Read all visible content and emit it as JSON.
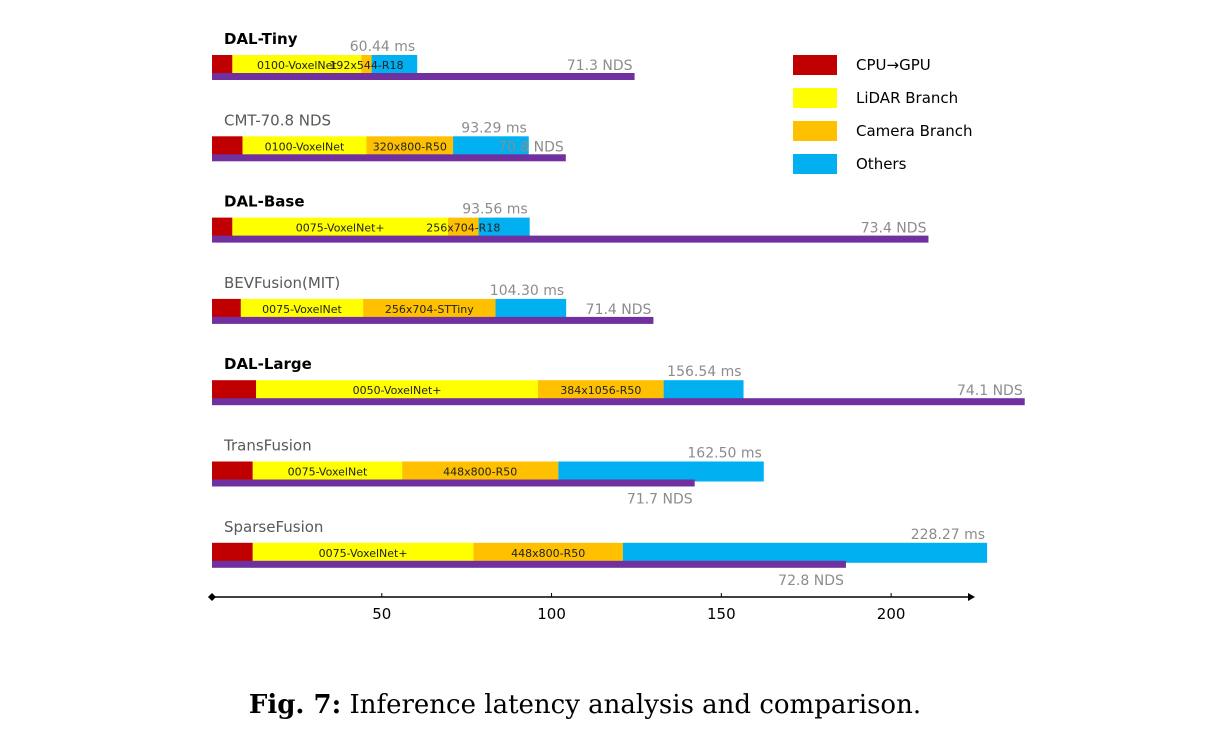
{
  "chart_data": {
    "type": "bar",
    "orientation": "horizontal",
    "stacked": true,
    "xlim": [
      0,
      225
    ],
    "xticks": [
      50,
      100,
      150,
      200
    ],
    "legend": {
      "placement": "top-right",
      "entries": [
        {
          "name": "CPU→GPU",
          "color": "#c00000"
        },
        {
          "name": "LiDAR Branch",
          "color": "#ffff00"
        },
        {
          "name": "Camera Branch",
          "color": "#ffc000"
        },
        {
          "name": "Others",
          "color": "#00b0f0"
        }
      ]
    },
    "nds_color": "#7030a0",
    "models": [
      {
        "name": "DAL-Tiny",
        "bold": true,
        "total_ms": 60.44,
        "total_label": "60.44 ms",
        "nds": 71.3,
        "nds_label": "71.3 NDS",
        "segments": [
          {
            "component": "CPU→GPU",
            "value": 6,
            "label": ""
          },
          {
            "component": "LiDAR Branch",
            "value": 38,
            "label": "0100-VoxelNet"
          },
          {
            "component": "Camera Branch",
            "value": 3,
            "label": "192x544-R18"
          },
          {
            "component": "Others",
            "value": 13.44,
            "label": ""
          }
        ]
      },
      {
        "name": "CMT-70.8 NDS",
        "bold": false,
        "total_ms": 93.29,
        "total_label": "93.29 ms",
        "nds": 70.8,
        "nds_label": "70.8 NDS",
        "segments": [
          {
            "component": "CPU→GPU",
            "value": 9,
            "label": ""
          },
          {
            "component": "LiDAR Branch",
            "value": 36.5,
            "label": "0100-VoxelNet"
          },
          {
            "component": "Camera Branch",
            "value": 25.5,
            "label": "320x800-R50"
          },
          {
            "component": "Others",
            "value": 22.29,
            "label": ""
          }
        ]
      },
      {
        "name": "DAL-Base",
        "bold": true,
        "total_ms": 93.56,
        "total_label": "93.56 ms",
        "nds": 73.4,
        "nds_label": "73.4 NDS",
        "segments": [
          {
            "component": "CPU→GPU",
            "value": 6,
            "label": ""
          },
          {
            "component": "LiDAR Branch",
            "value": 63.5,
            "label": "0075-VoxelNet+"
          },
          {
            "component": "Camera Branch",
            "value": 9,
            "label": "256x704-R18"
          },
          {
            "component": "Others",
            "value": 15.06,
            "label": ""
          }
        ]
      },
      {
        "name": "BEVFusion(MIT)",
        "bold": false,
        "total_ms": 104.3,
        "total_label": "104.30 ms",
        "nds": 71.4,
        "nds_label": "71.4 NDS",
        "segments": [
          {
            "component": "CPU→GPU",
            "value": 8.5,
            "label": ""
          },
          {
            "component": "LiDAR Branch",
            "value": 36,
            "label": "0075-VoxelNet"
          },
          {
            "component": "Camera Branch",
            "value": 39,
            "label": "256x704-STTiny"
          },
          {
            "component": "Others",
            "value": 20.8,
            "label": ""
          }
        ]
      },
      {
        "name": "DAL-Large",
        "bold": true,
        "total_ms": 156.54,
        "total_label": "156.54 ms",
        "nds": 74.1,
        "nds_label": "74.1 NDS",
        "segments": [
          {
            "component": "CPU→GPU",
            "value": 13,
            "label": ""
          },
          {
            "component": "LiDAR Branch",
            "value": 83,
            "label": "0050-VoxelNet+"
          },
          {
            "component": "Camera Branch",
            "value": 37,
            "label": "384x1056-R50"
          },
          {
            "component": "Others",
            "value": 23.54,
            "label": ""
          }
        ]
      },
      {
        "name": "TransFusion",
        "bold": false,
        "total_ms": 162.5,
        "total_label": "162.50 ms",
        "nds": 71.7,
        "nds_label": "71.7 NDS",
        "segments": [
          {
            "component": "CPU→GPU",
            "value": 12,
            "label": ""
          },
          {
            "component": "LiDAR Branch",
            "value": 44,
            "label": "0075-VoxelNet"
          },
          {
            "component": "Camera Branch",
            "value": 46,
            "label": "448x800-R50"
          },
          {
            "component": "Others",
            "value": 60.5,
            "label": ""
          }
        ]
      },
      {
        "name": "SparseFusion",
        "bold": false,
        "total_ms": 228.27,
        "total_label": "228.27 ms",
        "nds": 72.8,
        "nds_label": "72.8 NDS",
        "segments": [
          {
            "component": "CPU→GPU",
            "value": 12,
            "label": ""
          },
          {
            "component": "LiDAR Branch",
            "value": 65,
            "label": "0075-VoxelNet+"
          },
          {
            "component": "Camera Branch",
            "value": 44,
            "label": "448x800-R50"
          },
          {
            "component": "Others",
            "value": 107.27,
            "label": ""
          }
        ]
      }
    ]
  },
  "caption": {
    "prefix": "Fig. 7:",
    "text": "Inference latency analysis and comparison."
  }
}
